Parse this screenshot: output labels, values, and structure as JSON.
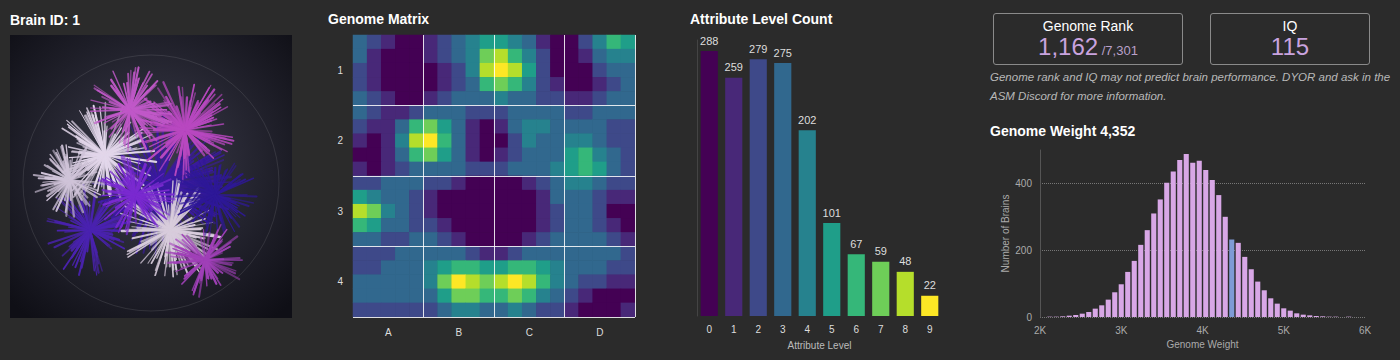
{
  "brain": {
    "title": "Brain ID: 1"
  },
  "cards": [
    {
      "title": "Genome Rank",
      "value": "1,162",
      "total": "/7,301"
    },
    {
      "title": "IQ",
      "value": "115"
    }
  ],
  "note": "Genome rank and IQ may not predict brain performance. DYOR and ask in the ASM Discord for more information.",
  "chart_data": [
    {
      "type": "heatmap",
      "title": "Genome Matrix",
      "x": [
        null,
        null,
        "A",
        null,
        null,
        null,
        null,
        "B",
        null,
        null,
        null,
        null,
        "C",
        null,
        null,
        null,
        null,
        "D",
        null,
        null
      ],
      "y": [
        null,
        null,
        "1",
        null,
        null,
        null,
        null,
        "2",
        null,
        null,
        null,
        null,
        "3",
        null,
        null,
        null,
        null,
        "4",
        null,
        null
      ],
      "cells": [
        [
          3,
          2,
          1,
          0,
          0,
          1,
          2,
          3,
          4,
          5,
          5,
          4,
          3,
          1,
          0,
          0,
          2,
          4,
          6,
          5
        ],
        [
          3,
          1,
          0,
          0,
          0,
          1,
          2,
          3,
          4,
          7,
          8,
          6,
          4,
          2,
          0,
          0,
          1,
          3,
          4,
          4
        ],
        [
          2,
          1,
          0,
          0,
          0,
          0,
          1,
          2,
          4,
          8,
          9,
          8,
          5,
          2,
          0,
          0,
          0,
          2,
          3,
          3
        ],
        [
          2,
          1,
          0,
          0,
          0,
          0,
          1,
          2,
          3,
          6,
          7,
          6,
          4,
          2,
          1,
          0,
          0,
          1,
          2,
          3
        ],
        [
          3,
          2,
          1,
          0,
          0,
          1,
          2,
          3,
          3,
          3,
          4,
          3,
          3,
          2,
          2,
          1,
          1,
          2,
          3,
          3
        ],
        [
          3,
          2,
          1,
          1,
          2,
          3,
          3,
          3,
          2,
          2,
          2,
          3,
          3,
          3,
          3,
          2,
          2,
          3,
          3,
          3
        ],
        [
          2,
          1,
          1,
          3,
          6,
          7,
          5,
          3,
          1,
          0,
          1,
          3,
          4,
          4,
          3,
          3,
          3,
          3,
          2,
          2
        ],
        [
          1,
          0,
          1,
          4,
          8,
          9,
          6,
          3,
          1,
          0,
          0,
          2,
          4,
          3,
          3,
          4,
          4,
          3,
          2,
          2
        ],
        [
          0,
          0,
          1,
          3,
          6,
          7,
          5,
          3,
          1,
          0,
          1,
          2,
          3,
          3,
          3,
          5,
          6,
          4,
          3,
          2
        ],
        [
          1,
          0,
          1,
          2,
          3,
          3,
          3,
          3,
          2,
          2,
          2,
          3,
          3,
          3,
          4,
          5,
          6,
          5,
          3,
          2
        ],
        [
          2,
          2,
          3,
          3,
          3,
          2,
          2,
          1,
          0,
          0,
          0,
          0,
          1,
          2,
          3,
          4,
          4,
          3,
          2,
          2
        ],
        [
          5,
          4,
          3,
          3,
          2,
          1,
          0,
          0,
          0,
          0,
          0,
          0,
          0,
          1,
          3,
          3,
          3,
          2,
          1,
          1
        ],
        [
          8,
          7,
          4,
          3,
          2,
          1,
          0,
          0,
          0,
          0,
          0,
          0,
          0,
          1,
          2,
          3,
          3,
          2,
          0,
          0
        ],
        [
          6,
          5,
          3,
          3,
          2,
          2,
          1,
          0,
          0,
          0,
          0,
          0,
          0,
          1,
          2,
          3,
          3,
          2,
          1,
          0
        ],
        [
          3,
          3,
          2,
          2,
          3,
          3,
          2,
          1,
          0,
          0,
          0,
          0,
          1,
          2,
          3,
          3,
          3,
          3,
          2,
          1
        ],
        [
          2,
          2,
          2,
          3,
          3,
          3,
          3,
          3,
          2,
          1,
          1,
          2,
          3,
          3,
          3,
          3,
          3,
          3,
          3,
          2
        ],
        [
          2,
          2,
          3,
          3,
          3,
          4,
          5,
          6,
          6,
          5,
          5,
          6,
          6,
          5,
          4,
          3,
          3,
          3,
          2,
          2
        ],
        [
          3,
          3,
          3,
          3,
          3,
          4,
          7,
          9,
          8,
          7,
          8,
          9,
          8,
          6,
          4,
          3,
          2,
          2,
          1,
          1
        ],
        [
          3,
          3,
          3,
          3,
          3,
          3,
          5,
          7,
          7,
          6,
          6,
          7,
          6,
          4,
          3,
          2,
          1,
          0,
          0,
          0
        ],
        [
          2,
          2,
          2,
          2,
          2,
          2,
          3,
          4,
          4,
          3,
          3,
          4,
          3,
          2,
          2,
          1,
          0,
          0,
          0,
          1
        ]
      ],
      "color_range": [
        0,
        9
      ],
      "grid": true
    },
    {
      "type": "bar",
      "title": "Attribute Level Count",
      "xlabel": "Attribute Level",
      "categories": [
        "0",
        "1",
        "2",
        "3",
        "4",
        "5",
        "6",
        "7",
        "8",
        "9"
      ],
      "values": [
        288,
        259,
        279,
        275,
        202,
        101,
        67,
        59,
        48,
        22
      ],
      "colors": [
        "#440154",
        "#482878",
        "#3e4989",
        "#31688e",
        "#26828e",
        "#1f9e89",
        "#35b779",
        "#6ece58",
        "#b5de2b",
        "#fde725"
      ],
      "ylim": [
        0,
        300
      ],
      "data_labels": true,
      "tick_labels": "x"
    },
    {
      "type": "histogram",
      "title": "Genome Weight 4,352",
      "xlabel": "Genome Weight",
      "ylabel": "Number of Brains",
      "bins": [
        2000,
        2080,
        2160,
        2240,
        2320,
        2400,
        2480,
        2560,
        2640,
        2720,
        2800,
        2880,
        2960,
        3040,
        3120,
        3200,
        3280,
        3360,
        3440,
        3520,
        3600,
        3680,
        3760,
        3840,
        3920,
        4000,
        4080,
        4160,
        4240,
        4320,
        4400,
        4480,
        4560,
        4640,
        4720,
        4800,
        4880,
        4960,
        5040,
        5120,
        5200,
        5280,
        5360,
        5440,
        5520,
        5600,
        5680,
        5760,
        5840,
        5920,
        6000
      ],
      "counts": [
        0,
        1,
        1,
        2,
        4,
        6,
        10,
        15,
        25,
        35,
        52,
        74,
        98,
        135,
        168,
        216,
        260,
        310,
        352,
        402,
        436,
        470,
        488,
        462,
        468,
        440,
        410,
        365,
        300,
        232,
        222,
        180,
        143,
        106,
        80,
        56,
        40,
        26,
        19,
        11,
        7,
        5,
        3,
        2,
        1,
        1,
        0,
        1,
        0,
        0
      ],
      "colors": [
        "#d8a7e6",
        "#d8a7e6",
        "#d8a7e6",
        "#d8a7e6",
        "#d8a7e6",
        "#d8a7e6",
        "#d8a7e6",
        "#d8a7e6",
        "#d8a7e6",
        "#d8a7e6",
        "#d8a7e6",
        "#d8a7e6",
        "#d8a7e6",
        "#d8a7e6",
        "#d8a7e6",
        "#d8a7e6",
        "#d8a7e6",
        "#d8a7e6",
        "#d8a7e6",
        "#d8a7e6",
        "#d8a7e6",
        "#d8a7e6",
        "#d8a7e6",
        "#d8a7e6",
        "#d8a7e6",
        "#d8a7e6",
        "#d8a7e6",
        "#d8a7e6",
        "#d8a7e6",
        "#7f9bd6",
        "#d8a7e6",
        "#d8a7e6",
        "#d8a7e6",
        "#d8a7e6",
        "#d8a7e6",
        "#d8a7e6",
        "#d8a7e6",
        "#d8a7e6",
        "#d8a7e6",
        "#d8a7e6",
        "#d8a7e6",
        "#d8a7e6",
        "#d8a7e6",
        "#d8a7e6",
        "#d8a7e6",
        "#d8a7e6",
        "#d8a7e6",
        "#d8a7e6",
        "#d8a7e6",
        "#d8a7e6"
      ],
      "xlim": [
        2000,
        6000
      ],
      "xticks": [
        {
          "value": 2000,
          "label": "2K"
        },
        {
          "value": 3000,
          "label": "3K"
        },
        {
          "value": 4000,
          "label": "4K"
        },
        {
          "value": 5000,
          "label": "5K"
        },
        {
          "value": 6000,
          "label": "6K"
        }
      ],
      "ylim": [
        0,
        500
      ],
      "yticks": [
        0,
        200,
        400
      ],
      "grid": true
    }
  ]
}
